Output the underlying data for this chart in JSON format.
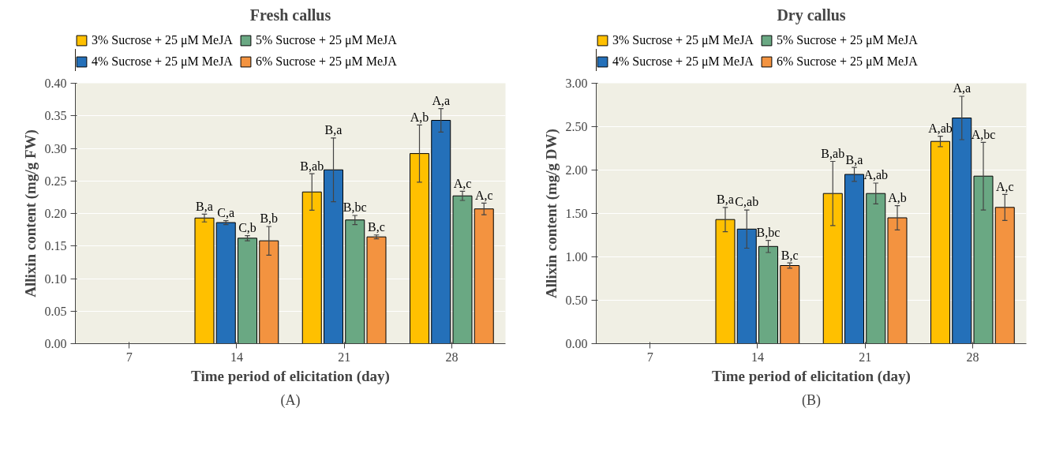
{
  "chart_data": [
    {
      "type": "bar",
      "title": "Fresh callus",
      "xlabel": "Time period of elicitation (day)",
      "ylabel": "Allixin content (mg/g FW)",
      "categories": [
        "7",
        "14",
        "21",
        "28"
      ],
      "series": [
        {
          "name": "3% Sucrose + 25 μM MeJA",
          "color": "#ffc000",
          "values": [
            null,
            0.193,
            0.233,
            0.292
          ],
          "errors": [
            null,
            0.006,
            0.028,
            0.044
          ],
          "value_labels": [
            null,
            "B,a",
            "B,ab",
            "A,b"
          ]
        },
        {
          "name": "4% Sucrose + 25 μM MeJA",
          "color": "#2470b9",
          "values": [
            null,
            0.186,
            0.267,
            0.343
          ],
          "errors": [
            null,
            0.003,
            0.049,
            0.018
          ],
          "value_labels": [
            null,
            "C,a",
            "B,a",
            "A,a"
          ]
        },
        {
          "name": "5% Sucrose + 25 μM MeJA",
          "color": "#6aa883",
          "values": [
            null,
            0.162,
            0.19,
            0.227
          ],
          "errors": [
            null,
            0.004,
            0.007,
            0.007
          ],
          "value_labels": [
            null,
            "C,b",
            "B,bc",
            "A,c"
          ]
        },
        {
          "name": "6% Sucrose + 25 μM MeJA",
          "color": "#f39340",
          "values": [
            null,
            0.158,
            0.164,
            0.207
          ],
          "errors": [
            null,
            0.022,
            0.003,
            0.009
          ],
          "value_labels": [
            null,
            "B,b",
            "B,c",
            "A,c"
          ]
        }
      ],
      "ylim": [
        0,
        0.4
      ],
      "yticks": [
        {
          "value": 0,
          "label": "0.00"
        },
        {
          "value": 0.05,
          "label": "0.05"
        },
        {
          "value": 0.1,
          "label": "0.10"
        },
        {
          "value": 0.15,
          "label": "0.15"
        },
        {
          "value": 0.2,
          "label": "0.20"
        },
        {
          "value": 0.25,
          "label": "0.25"
        },
        {
          "value": 0.3,
          "label": "0.30"
        },
        {
          "value": 0.35,
          "label": "0.35"
        },
        {
          "value": 0.4,
          "label": "0.40"
        }
      ],
      "grid": "y",
      "legend": "top",
      "annotations": [
        "(A)"
      ]
    },
    {
      "type": "bar",
      "title": "Dry callus",
      "xlabel": "Time period of elicitation (day)",
      "ylabel": "Allixin content (mg/g DW)",
      "categories": [
        "7",
        "14",
        "21",
        "28"
      ],
      "series": [
        {
          "name": "3% Sucrose + 25 μM MeJA",
          "color": "#ffc000",
          "values": [
            null,
            1.43,
            1.73,
            2.33
          ],
          "errors": [
            null,
            0.14,
            0.37,
            0.06
          ],
          "value_labels": [
            null,
            "B,a",
            "B,ab",
            "A,ab"
          ]
        },
        {
          "name": "4% Sucrose + 25 μM MeJA",
          "color": "#2470b9",
          "values": [
            null,
            1.32,
            1.95,
            2.6
          ],
          "errors": [
            null,
            0.22,
            0.08,
            0.25
          ],
          "value_labels": [
            null,
            "C,ab",
            "B,a",
            "A,a"
          ]
        },
        {
          "name": "5% Sucrose + 25 μM MeJA",
          "color": "#6aa883",
          "values": [
            null,
            1.12,
            1.73,
            1.93
          ],
          "errors": [
            null,
            0.07,
            0.12,
            0.39
          ],
          "value_labels": [
            null,
            "B,bc",
            "A,ab",
            "A,bc"
          ]
        },
        {
          "name": "6% Sucrose + 25 μM MeJA",
          "color": "#f39340",
          "values": [
            null,
            0.9,
            1.45,
            1.57
          ],
          "errors": [
            null,
            0.03,
            0.14,
            0.15
          ],
          "value_labels": [
            null,
            "B,c",
            "A,b",
            "A,c"
          ]
        }
      ],
      "ylim": [
        0,
        3
      ],
      "yticks": [
        {
          "value": 0,
          "label": "0.00"
        },
        {
          "value": 0.5,
          "label": "0.50"
        },
        {
          "value": 1,
          "label": "1.00"
        },
        {
          "value": 1.5,
          "label": "1.50"
        },
        {
          "value": 2,
          "label": "2.00"
        },
        {
          "value": 2.5,
          "label": "2.50"
        },
        {
          "value": 3,
          "label": "3.00"
        }
      ],
      "grid": "y",
      "legend": "top",
      "annotations": [
        "(B)"
      ]
    }
  ]
}
